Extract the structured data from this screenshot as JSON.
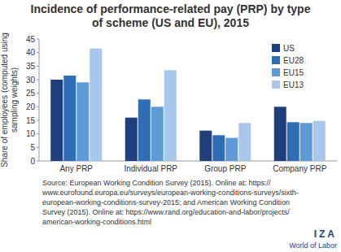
{
  "chart_data": {
    "type": "bar",
    "title": "Incidence of performance-related pay (PRP) by type of scheme (US and EU), 2015",
    "y_label": "Share of employees (computed using sampling weights)",
    "categories": [
      "Any PRP",
      "Individual PRP",
      "Group PRP",
      "Company PRP"
    ],
    "series": [
      {
        "name": "US",
        "color": "#1f3f7c",
        "values": [
          30,
          16,
          11.2,
          20
        ]
      },
      {
        "name": "EU28",
        "color": "#2f6db5",
        "values": [
          31.5,
          22.7,
          9.5,
          14.3
        ]
      },
      {
        "name": "EU15",
        "color": "#5e9ad6",
        "values": [
          29,
          20,
          8.5,
          14
        ]
      },
      {
        "name": "EU13",
        "color": "#a8c7ea",
        "values": [
          41.5,
          33.5,
          14,
          14.8
        ]
      }
    ],
    "ylim": [
      0,
      45
    ],
    "yticks": [
      0,
      5,
      10,
      15,
      20,
      25,
      30,
      35,
      40,
      45
    ],
    "grid": false,
    "legend": "upper right",
    "source": [
      "Source: European Working Condition Survey (2015). Online at: https://",
      "www.eurofound.europa.eu/surveys/european-working-conditions-surveys/sixth-",
      "european-working-conditions-survey-2015; and American Working Condition",
      "Survey (2015). Online at: https://www.rand.org/education-and-labor/projects/",
      "american-working-conditions.html"
    ],
    "logo": [
      "IZA",
      "World of Labor"
    ]
  }
}
